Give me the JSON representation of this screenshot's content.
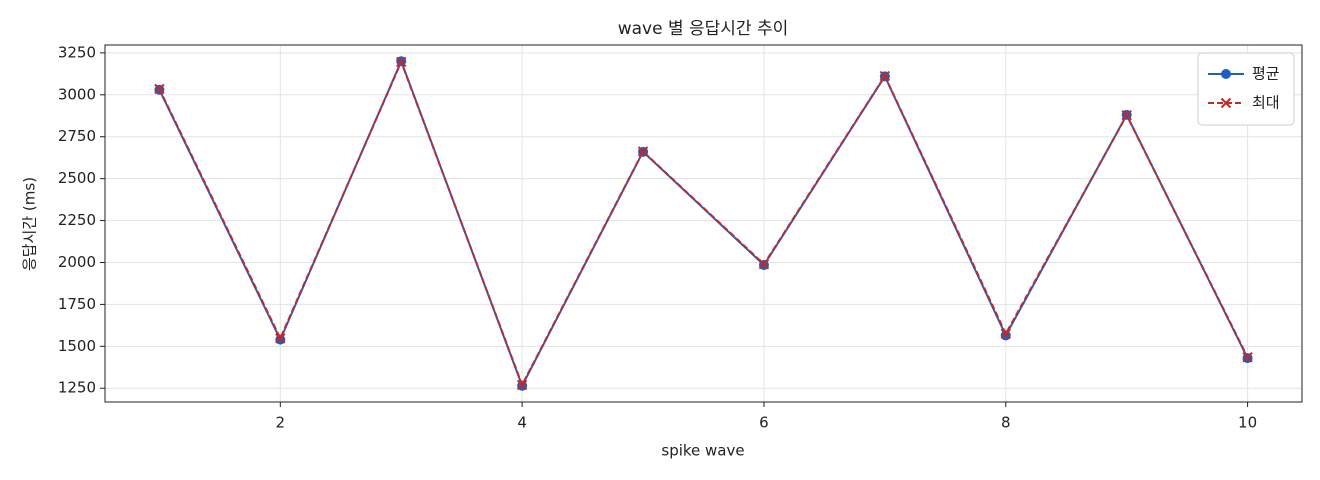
{
  "chart_data": {
    "type": "line",
    "title": "wave 별 응답시간 추이",
    "xlabel": "spike wave",
    "ylabel": "응답시간 (ms)",
    "x": [
      1,
      2,
      3,
      4,
      5,
      6,
      7,
      8,
      9,
      10
    ],
    "series": [
      {
        "name": "평균",
        "color": "#1f5fbf",
        "marker": "circle",
        "linestyle": "solid",
        "values": [
          3030,
          1540,
          3200,
          1265,
          2660,
          1985,
          3110,
          1565,
          2880,
          1430
        ]
      },
      {
        "name": "최대",
        "color": "#c62828",
        "marker": "x",
        "linestyle": "dashed",
        "values": [
          3035,
          1548,
          3196,
          1270,
          2662,
          1990,
          3112,
          1575,
          2878,
          1435
        ]
      }
    ],
    "xlim": [
      0.55,
      10.45
    ],
    "xticks": [
      2,
      4,
      6,
      8,
      10
    ],
    "ylim": [
      1168,
      3297
    ],
    "yticks": [
      1250,
      1500,
      1750,
      2000,
      2250,
      2500,
      2750,
      3000,
      3250
    ],
    "grid": true,
    "legend": "upper right"
  }
}
